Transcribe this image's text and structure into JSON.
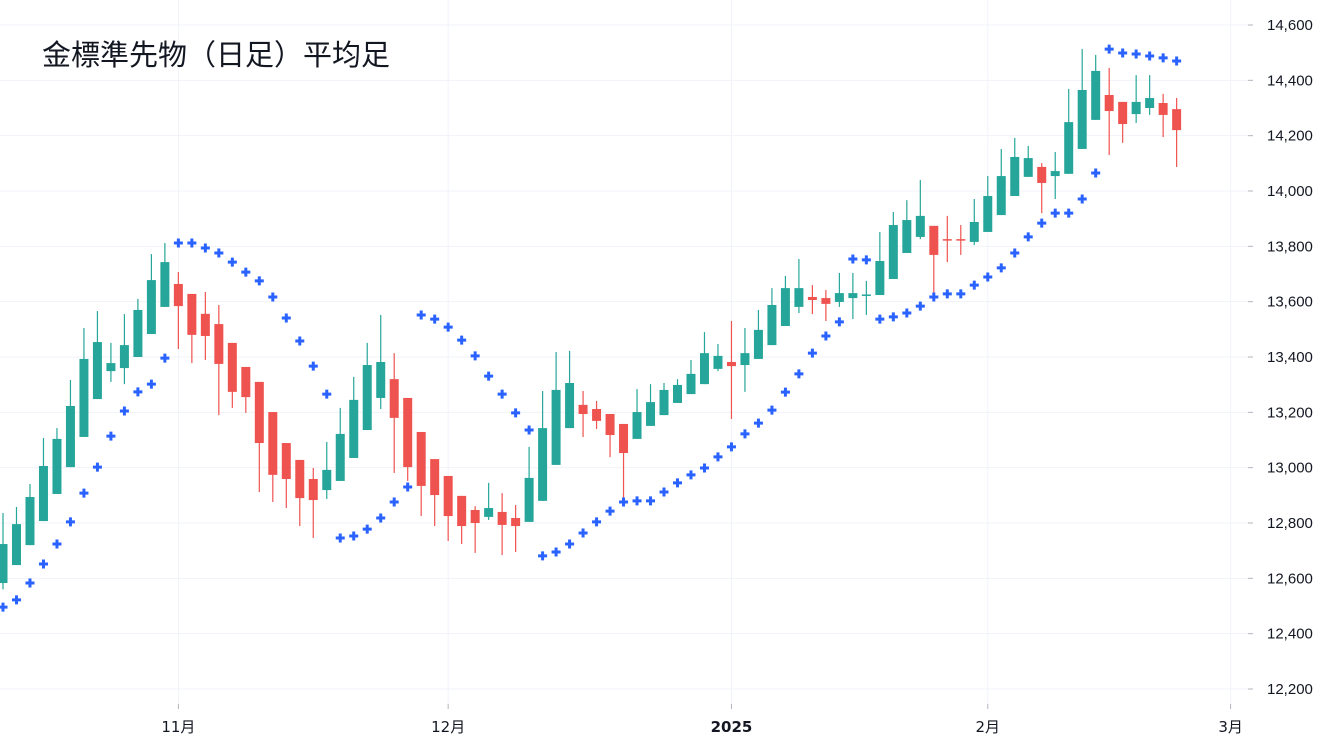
{
  "chart_data": {
    "type": "candlestick",
    "title": "金標準先物（日足）平均足",
    "ylim": [
      12200,
      14600
    ],
    "y_ticks": [
      12200,
      12400,
      12600,
      12800,
      13000,
      13200,
      13400,
      13600,
      13800,
      14000,
      14200,
      14400,
      14600
    ],
    "y_tick_labels": [
      "12,200",
      "12,400",
      "12,600",
      "12,800",
      "13,000",
      "13,200",
      "13,400",
      "13,600",
      "13,800",
      "14,000",
      "14,200",
      "14,400",
      "14,600"
    ],
    "x_ticks": [
      {
        "label": "11月",
        "index": 13,
        "bold": false
      },
      {
        "label": "12月",
        "index": 33,
        "bold": false
      },
      {
        "label": "2025",
        "index": 54,
        "bold": true
      },
      {
        "label": "2月",
        "index": 73,
        "bold": false
      },
      {
        "label": "3月",
        "index": 91,
        "bold": false
      }
    ],
    "grid": true,
    "colors": {
      "up": "#26a69a",
      "down": "#ef5350",
      "sar": "#2962ff",
      "grid": "#f0f3fa",
      "text": "#131722"
    },
    "ohlc": [
      [
        12583,
        12836,
        12560,
        12724
      ],
      [
        12648,
        12858,
        12648,
        12796
      ],
      [
        12720,
        12941,
        12720,
        12894
      ],
      [
        12807,
        13107,
        12807,
        13006
      ],
      [
        12905,
        13143,
        12905,
        13104
      ],
      [
        13002,
        13317,
        13002,
        13223
      ],
      [
        13111,
        13505,
        13111,
        13393
      ],
      [
        13248,
        13566,
        13248,
        13454
      ],
      [
        13349,
        13451,
        13310,
        13378
      ],
      [
        13360,
        13555,
        13302,
        13443
      ],
      [
        13400,
        13610,
        13400,
        13570
      ],
      [
        13483,
        13772,
        13483,
        13678
      ],
      [
        13581,
        13812,
        13581,
        13743
      ],
      [
        13664,
        13707,
        13429,
        13584
      ],
      [
        13628,
        13628,
        13378,
        13480
      ],
      [
        13556,
        13635,
        13389,
        13476
      ],
      [
        13519,
        13588,
        13190,
        13375
      ],
      [
        13451,
        13451,
        13216,
        13274
      ],
      [
        13364,
        13364,
        13198,
        13255
      ],
      [
        13310,
        13310,
        12912,
        13089
      ],
      [
        13201,
        13201,
        12876,
        12974
      ],
      [
        13089,
        13089,
        12854,
        12959
      ],
      [
        13028,
        13028,
        12789,
        12890
      ],
      [
        12959,
        12999,
        12746,
        12883
      ],
      [
        12919,
        13093,
        12887,
        12992
      ],
      [
        12952,
        13216,
        12952,
        13122
      ],
      [
        13035,
        13328,
        13035,
        13245
      ],
      [
        13136,
        13451,
        13136,
        13371
      ],
      [
        13252,
        13552,
        13212,
        13382
      ],
      [
        13320,
        13414,
        12981,
        13180
      ],
      [
        13252,
        13252,
        12952,
        13002
      ],
      [
        13129,
        13129,
        12825,
        12934
      ],
      [
        13031,
        13031,
        12789,
        12901
      ],
      [
        12970,
        12970,
        12735,
        12825
      ],
      [
        12898,
        12898,
        12724,
        12789
      ],
      [
        12847,
        12861,
        12692,
        12800
      ],
      [
        12822,
        12945,
        12811,
        12854
      ],
      [
        12840,
        12908,
        12684,
        12793
      ],
      [
        12818,
        12865,
        12695,
        12789
      ],
      [
        12804,
        13075,
        12804,
        12963
      ],
      [
        12880,
        13277,
        12880,
        13143
      ],
      [
        13010,
        13418,
        13010,
        13281
      ],
      [
        13143,
        13422,
        13143,
        13306
      ],
      [
        13227,
        13277,
        13111,
        13194
      ],
      [
        13212,
        13241,
        13140,
        13169
      ],
      [
        13194,
        13194,
        13038,
        13118
      ],
      [
        13158,
        13158,
        12876,
        13053
      ],
      [
        13104,
        13284,
        13104,
        13201
      ],
      [
        13151,
        13302,
        13151,
        13237
      ],
      [
        13190,
        13306,
        13190,
        13281
      ],
      [
        13234,
        13320,
        13234,
        13299
      ],
      [
        13266,
        13389,
        13266,
        13339
      ],
      [
        13302,
        13490,
        13302,
        13414
      ],
      [
        13357,
        13447,
        13349,
        13404
      ],
      [
        13382,
        13530,
        13176,
        13367
      ],
      [
        13371,
        13505,
        13274,
        13414
      ],
      [
        13393,
        13570,
        13393,
        13498
      ],
      [
        13443,
        13649,
        13443,
        13588
      ],
      [
        13512,
        13693,
        13512,
        13649
      ],
      [
        13581,
        13754,
        13559,
        13649
      ],
      [
        13617,
        13660,
        13555,
        13606
      ],
      [
        13613,
        13642,
        13530,
        13592
      ],
      [
        13599,
        13704,
        13581,
        13631
      ],
      [
        13613,
        13704,
        13537,
        13631
      ],
      [
        13622,
        13675,
        13552,
        13626
      ],
      [
        13624,
        13852,
        13624,
        13747
      ],
      [
        13682,
        13924,
        13682,
        13877
      ],
      [
        13776,
        13967,
        13776,
        13895
      ],
      [
        13834,
        14040,
        13826,
        13910
      ],
      [
        13874,
        13874,
        13631,
        13769
      ],
      [
        13826,
        13910,
        13743,
        13822
      ],
      [
        13826,
        13877,
        13769,
        13822
      ],
      [
        13816,
        13971,
        13805,
        13888
      ],
      [
        13852,
        14054,
        13852,
        13982
      ],
      [
        13913,
        14152,
        13913,
        14054
      ],
      [
        13982,
        14192,
        13982,
        14123
      ],
      [
        14051,
        14163,
        14051,
        14119
      ],
      [
        14087,
        14101,
        13920,
        14029
      ],
      [
        14054,
        14141,
        13971,
        14072
      ],
      [
        14062,
        14369,
        14062,
        14249
      ],
      [
        14152,
        14513,
        14152,
        14365
      ],
      [
        14257,
        14492,
        14257,
        14434
      ],
      [
        14347,
        14445,
        14130,
        14289
      ],
      [
        14322,
        14322,
        14174,
        14242
      ],
      [
        14278,
        14419,
        14246,
        14322
      ],
      [
        14300,
        14419,
        14275,
        14336
      ],
      [
        14318,
        14351,
        14195,
        14275
      ],
      [
        14296,
        14336,
        14087,
        14220
      ]
    ],
    "parabolic_sar": [
      12496,
      12522,
      12583,
      12652,
      12724,
      12804,
      12908,
      13002,
      13114,
      13205,
      13274,
      13302,
      13396,
      13812,
      13812,
      13794,
      13776,
      13743,
      13707,
      13675,
      13617,
      13541,
      13458,
      13367,
      13266,
      12746,
      12753,
      12778,
      12818,
      12876,
      12930,
      13552,
      13537,
      13508,
      13461,
      13404,
      13331,
      13266,
      13198,
      13136,
      12681,
      12695,
      12724,
      12764,
      12804,
      12843,
      12876,
      12880,
      12880,
      12912,
      12945,
      12974,
      12999,
      13039,
      13075,
      13122,
      13161,
      13208,
      13273,
      13339,
      13414,
      13476,
      13527,
      13754,
      13751,
      13537,
      13545,
      13559,
      13584,
      13617,
      13628,
      13628,
      13660,
      13689,
      13722,
      13776,
      13834,
      13884,
      13920,
      13920,
      13971,
      14065,
      14513,
      14499,
      14495,
      14488,
      14481,
      14470
    ]
  }
}
